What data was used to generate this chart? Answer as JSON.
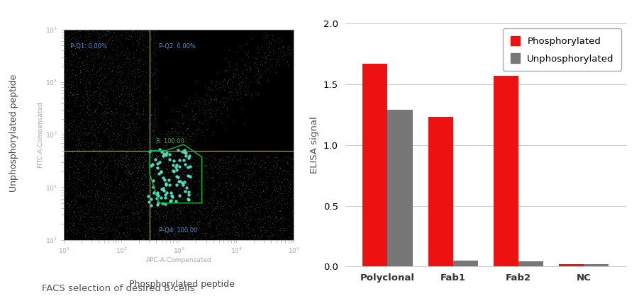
{
  "bar_categories": [
    "Polyclonal",
    "Fab1",
    "Fab2",
    "NC"
  ],
  "phosphorylated": [
    1.67,
    1.23,
    1.57,
    0.02
  ],
  "unphosphorylated": [
    1.29,
    0.05,
    0.04,
    0.02
  ],
  "bar_color_phos": "#ee1111",
  "bar_color_unphos": "#777777",
  "ylabel_bar": "ELISA signal",
  "ylim_bar": [
    0.0,
    2.0
  ],
  "yticks_bar": [
    0.0,
    0.5,
    1.0,
    1.5,
    2.0
  ],
  "legend_labels": [
    "Phosphorylated",
    "Unphosphorylated"
  ],
  "caption": "FACS selection of desired B cells",
  "scatter_xlabel": "Phosphorylated peptide",
  "scatter_ylabel": "Unphosphorylated peptide",
  "scatter_xlabel2": "APC-A-Compensated",
  "scatter_ylabel2": "FITC-A-Compensated",
  "quadrant_labels": {
    "Q1": "P-Q1: 0.00%",
    "Q2": "P-Q2: 0.00%",
    "R": "R: 100.00",
    "Q4": "P-Q4: 100.00"
  },
  "gate_color": "#00bb44",
  "quadrant_color": "#aaaa00",
  "annotation_color_blue": "#4499cc",
  "facs_bg_color": "#000000",
  "dot_color": "#55eecc",
  "noise_color": "#606060"
}
